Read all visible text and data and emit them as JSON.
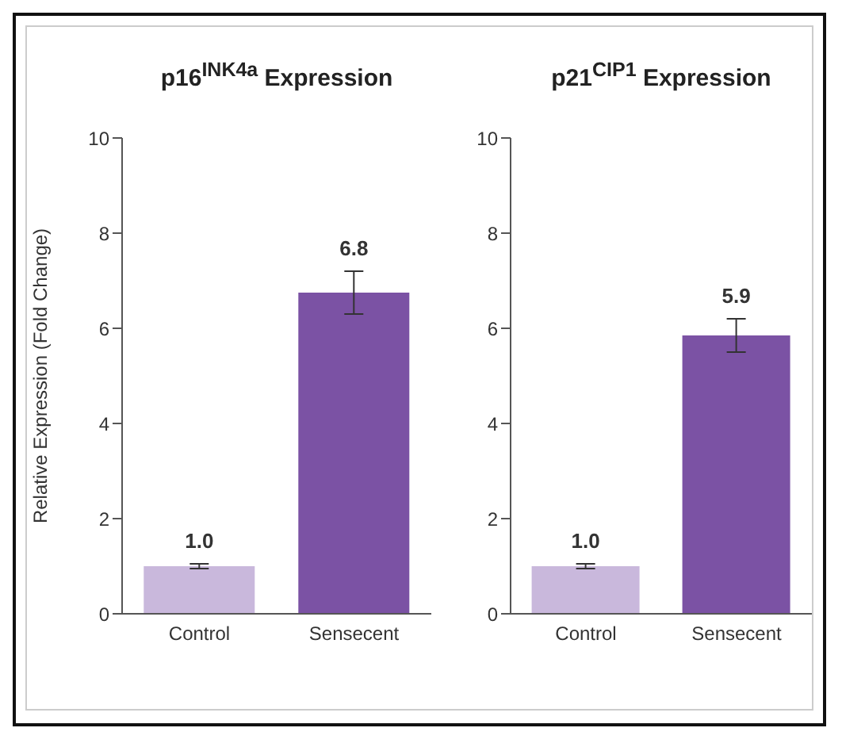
{
  "chart_data": [
    {
      "type": "bar",
      "title": "p16$^{INK4a}$ Expression",
      "ylabel": "Relative Expression (Fold Change)",
      "categories": [
        "Control",
        "Sensecent"
      ],
      "values": [
        1.0,
        6.75
      ],
      "value_labels": [
        "1.0",
        "6.8"
      ],
      "errors": [
        0.05,
        0.45
      ],
      "colors": [
        "#c9b8dc",
        "#7b52a4"
      ],
      "ylim": [
        0,
        10
      ],
      "yticks": [
        0,
        2,
        4,
        6,
        8,
        10
      ],
      "grid": false,
      "legend": false
    },
    {
      "type": "bar",
      "title": "p21$^{CIP1}$ Expression",
      "categories": [
        "Control",
        "Sensecent"
      ],
      "values": [
        1.0,
        5.85
      ],
      "value_labels": [
        "1.0",
        "5.9"
      ],
      "errors": [
        0.05,
        0.35
      ],
      "colors": [
        "#c9b8dc",
        "#7b52a4"
      ],
      "ylim": [
        0,
        10
      ],
      "yticks": [
        0,
        2,
        4,
        6,
        8,
        10
      ],
      "grid": false,
      "legend": false
    }
  ]
}
